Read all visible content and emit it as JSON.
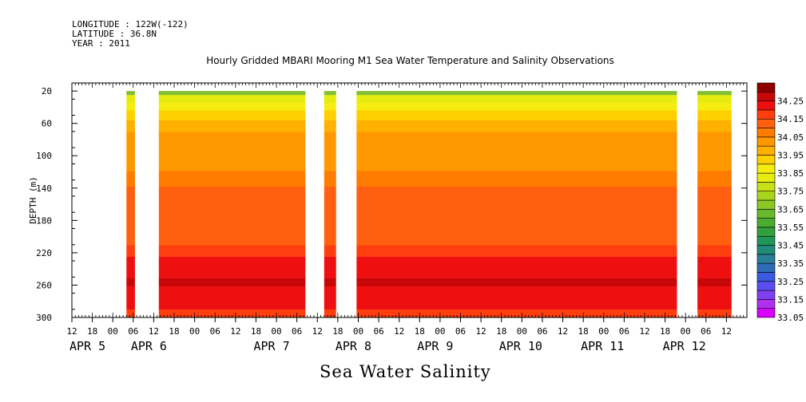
{
  "header": {
    "longitude": "LONGITUDE : 122W(-122)",
    "latitude": "LATITUDE : 36.8N",
    "year": "YEAR : 2011"
  },
  "subtitle": "Sea Water Salinity",
  "chart_data": {
    "type": "heatmap",
    "title": "Hourly Gridded MBARI Mooring M1 Sea Water Temperature and Salinity Observations",
    "xlabel": "",
    "ylabel": "DEPTH (m)",
    "ylim": [
      300,
      10
    ],
    "yticks": [
      20,
      60,
      100,
      140,
      180,
      220,
      260,
      300
    ],
    "xlim_hours": [
      0,
      198
    ],
    "xtick_hour_labels": [
      "12",
      "18",
      "00",
      "06",
      "12",
      "18",
      "00",
      "06",
      "12",
      "18",
      "00",
      "06",
      "12",
      "18",
      "00",
      "06",
      "12",
      "18",
      "00",
      "06",
      "12",
      "18",
      "00",
      "06",
      "12",
      "18",
      "00",
      "06",
      "12",
      "18",
      "00",
      "06",
      "12"
    ],
    "date_labels": [
      "APR 5",
      "APR 6",
      "APR 7",
      "APR 8",
      "APR 9",
      "APR 10",
      "APR 11",
      "APR 12"
    ],
    "data_blocks_hours": [
      [
        16,
        18.5
      ],
      [
        25.5,
        68.5
      ],
      [
        74,
        77.5
      ],
      [
        83.5,
        177.5
      ],
      [
        183.5,
        193.5
      ]
    ],
    "colorbar": {
      "levels": [
        33.05,
        33.1,
        33.15,
        33.2,
        33.25,
        33.3,
        33.35,
        33.4,
        33.45,
        33.5,
        33.55,
        33.6,
        33.65,
        33.7,
        33.75,
        33.8,
        33.85,
        33.9,
        33.95,
        34.0,
        34.05,
        34.1,
        34.15,
        34.2,
        34.25,
        34.3
      ],
      "labels": [
        "34.25",
        "34.15",
        "34.05",
        "33.95",
        "33.85",
        "33.75",
        "33.65",
        "33.55",
        "33.45",
        "33.35",
        "33.25",
        "33.15",
        "33.05"
      ],
      "colors": [
        "#d800ff",
        "#b030f0",
        "#8040f0",
        "#5a4ef0",
        "#3a5ae0",
        "#2e6ab8",
        "#2a7e98",
        "#1e8c78",
        "#22965a",
        "#32a03c",
        "#4aac30",
        "#68ba2c",
        "#8ac826",
        "#a8d41e",
        "#c8e016",
        "#e6ec10",
        "#f6ec10",
        "#ffd000",
        "#ffb000",
        "#ff9800",
        "#ff7c00",
        "#ff6010",
        "#ff3e10",
        "#ee1010",
        "#c80808",
        "#8e0000"
      ]
    },
    "salinity_profile": [
      {
        "depth": 10,
        "value": 33.8
      },
      {
        "depth": 20,
        "value": 33.84
      },
      {
        "depth": 30,
        "value": 33.88
      },
      {
        "depth": 40,
        "value": 33.92
      },
      {
        "depth": 55,
        "value": 33.98
      },
      {
        "depth": 70,
        "value": 34.02
      },
      {
        "depth": 100,
        "value": 34.04
      },
      {
        "depth": 125,
        "value": 34.07
      },
      {
        "depth": 140,
        "value": 34.11
      },
      {
        "depth": 170,
        "value": 34.13
      },
      {
        "depth": 200,
        "value": 34.14
      },
      {
        "depth": 215,
        "value": 34.17
      },
      {
        "depth": 230,
        "value": 34.2
      },
      {
        "depth": 245,
        "value": 34.24
      },
      {
        "depth": 255,
        "value": 34.27
      },
      {
        "depth": 265,
        "value": 34.24
      },
      {
        "depth": 280,
        "value": 34.2
      },
      {
        "depth": 300,
        "value": 34.17
      }
    ]
  }
}
